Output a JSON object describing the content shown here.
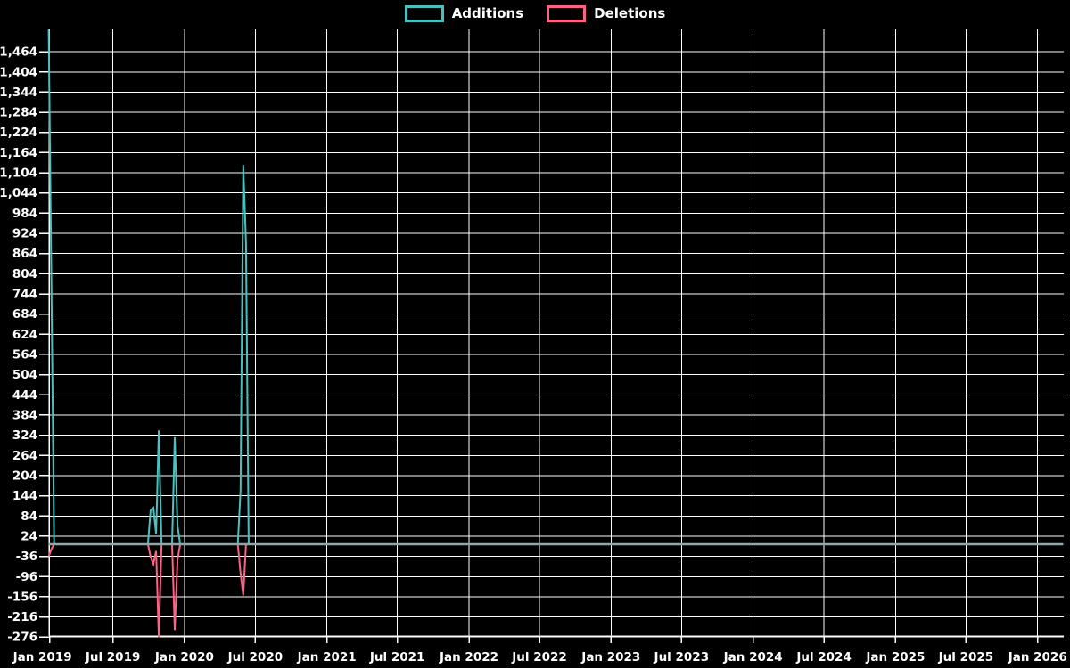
{
  "legend": {
    "items": [
      {
        "label": "Additions",
        "color": "#4bc0c0"
      },
      {
        "label": "Deletions",
        "color": "#ff6384"
      }
    ]
  },
  "chart_data": {
    "type": "line",
    "title": "",
    "background": "#000000",
    "grid": {
      "on": true,
      "color": "#ffffff"
    },
    "axis_color": "#ffffff",
    "text_color": "#ffffff",
    "baseline": {
      "value": 0,
      "color": "#8aa9ad"
    },
    "y_axis": {
      "min": -276,
      "max": 1530,
      "step": 60,
      "tick_labels": [
        "1,464",
        "1,404",
        "1,344",
        "1,284",
        "1,224",
        "1,164",
        "1,104",
        "1,044",
        "984",
        "924",
        "864",
        "804",
        "744",
        "684",
        "624",
        "564",
        "504",
        "444",
        "384",
        "324",
        "264",
        "204",
        "144",
        "84",
        "24",
        "-36",
        "-96",
        "-156",
        "-216",
        "-276"
      ]
    },
    "x_axis": {
      "tick_labels": [
        "Jan 2019",
        "Jul 2019",
        "Jan 2020",
        "Jul 2020",
        "Jan 2021",
        "Jul 2021",
        "Jan 2022",
        "Jul 2022",
        "Jan 2023",
        "Jul 2023",
        "Jan 2024",
        "Jul 2024",
        "Jan 2025",
        "Jul 2025",
        "Jan 2026"
      ]
    },
    "series": [
      {
        "name": "Additions",
        "color": "#4bc0c0",
        "points": [
          [
            "2019-01-17",
            1530
          ],
          [
            "2019-01-24",
            790
          ],
          [
            "2019-01-31",
            0
          ],
          [
            "2019-09-29",
            0
          ],
          [
            "2019-10-06",
            100
          ],
          [
            "2019-10-13",
            108
          ],
          [
            "2019-10-20",
            30
          ],
          [
            "2019-10-27",
            338
          ],
          [
            "2019-11-03",
            0
          ],
          [
            "2019-11-30",
            0
          ],
          [
            "2019-12-07",
            318
          ],
          [
            "2019-12-14",
            55
          ],
          [
            "2019-12-21",
            0
          ],
          [
            "2020-05-17",
            0
          ],
          [
            "2020-05-24",
            160
          ],
          [
            "2020-05-31",
            1128
          ],
          [
            "2020-06-07",
            895
          ],
          [
            "2020-06-14",
            0
          ],
          [
            "2026-03-08",
            0
          ]
        ]
      },
      {
        "name": "Deletions",
        "color": "#ff6384",
        "points": [
          [
            "2019-01-17",
            -36
          ],
          [
            "2019-01-24",
            -15
          ],
          [
            "2019-01-31",
            0
          ],
          [
            "2019-09-29",
            0
          ],
          [
            "2019-10-06",
            -37
          ],
          [
            "2019-10-13",
            -59
          ],
          [
            "2019-10-20",
            -20
          ],
          [
            "2019-10-27",
            -276
          ],
          [
            "2019-11-03",
            0
          ],
          [
            "2019-11-30",
            0
          ],
          [
            "2019-12-07",
            -255
          ],
          [
            "2019-12-14",
            -46
          ],
          [
            "2019-12-21",
            0
          ],
          [
            "2020-05-17",
            0
          ],
          [
            "2020-05-24",
            -86
          ],
          [
            "2020-05-31",
            -152
          ],
          [
            "2020-06-07",
            0
          ],
          [
            "2026-03-08",
            0
          ]
        ]
      }
    ]
  }
}
